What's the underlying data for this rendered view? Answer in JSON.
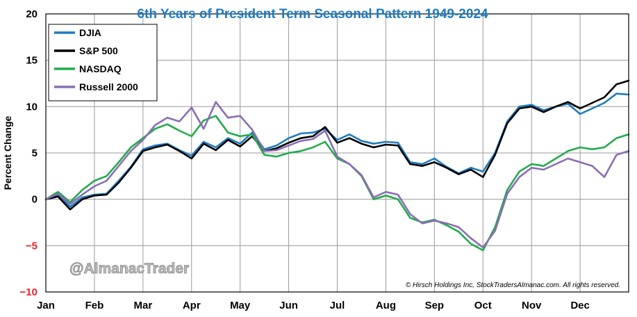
{
  "chart_data": {
    "type": "line",
    "title": "6th Years of President Term Seasonal Pattern 1949-2024",
    "xlabel": "",
    "ylabel": "Percent Change",
    "ylim": [
      -10,
      20
    ],
    "yticks": [
      -10,
      -5,
      0,
      5,
      10,
      15,
      20
    ],
    "categories": [
      "Jan",
      "Feb",
      "Mar",
      "Apr",
      "May",
      "Jun",
      "Jul",
      "Aug",
      "Sep",
      "Oct",
      "Nov",
      "Dec"
    ],
    "x": [
      0,
      0.25,
      0.5,
      0.75,
      1,
      1.25,
      1.5,
      1.75,
      2,
      2.25,
      2.5,
      2.75,
      3,
      3.25,
      3.5,
      3.75,
      4,
      4.25,
      4.5,
      4.75,
      5,
      5.25,
      5.5,
      5.75,
      6,
      6.25,
      6.5,
      6.75,
      7,
      7.25,
      7.5,
      7.75,
      8,
      8.25,
      8.5,
      8.75,
      9,
      9.25,
      9.5,
      9.75,
      10,
      10.25,
      10.5,
      10.75,
      11,
      11.25,
      11.5,
      11.75,
      12
    ],
    "grid": true,
    "legend_position": "top-left",
    "series": [
      {
        "name": "DJIA",
        "color": "#1e7bbf",
        "values": [
          0,
          0.5,
          -0.8,
          0.2,
          0.5,
          0.6,
          2.0,
          3.5,
          5.4,
          5.8,
          6.0,
          5.3,
          4.7,
          6.2,
          5.6,
          6.6,
          6.0,
          7.2,
          5.4,
          5.8,
          6.6,
          7.1,
          7.2,
          7.6,
          6.4,
          7.0,
          6.3,
          6.0,
          6.2,
          6.1,
          4.0,
          3.8,
          4.4,
          3.5,
          2.8,
          3.4,
          3.0,
          5.0,
          8.4,
          10.0,
          10.2,
          9.6,
          10.0,
          10.3,
          9.2,
          9.8,
          10.4,
          11.4,
          11.3
        ]
      },
      {
        "name": "S&P 500",
        "color": "#000000",
        "values": [
          0,
          0.3,
          -1.1,
          0.0,
          0.4,
          0.5,
          1.8,
          3.4,
          5.2,
          5.6,
          5.9,
          5.2,
          4.4,
          6.0,
          5.3,
          6.4,
          5.7,
          6.8,
          5.2,
          5.5,
          6.1,
          6.6,
          6.8,
          7.8,
          6.1,
          6.6,
          6.0,
          5.6,
          5.9,
          5.8,
          3.8,
          3.6,
          4.0,
          3.4,
          2.7,
          3.2,
          2.4,
          4.8,
          8.2,
          9.8,
          10.0,
          9.4,
          10.0,
          10.5,
          9.8,
          10.4,
          11.0,
          12.4,
          12.8
        ]
      },
      {
        "name": "NASDAQ",
        "color": "#22aa4c",
        "values": [
          0,
          0.8,
          -0.3,
          1.0,
          2.0,
          2.5,
          4.0,
          5.6,
          6.6,
          7.6,
          8.1,
          7.4,
          6.8,
          8.5,
          9.0,
          7.2,
          6.8,
          7.0,
          4.8,
          4.6,
          5.0,
          5.2,
          5.6,
          6.2,
          4.4,
          3.8,
          2.5,
          0.0,
          0.4,
          0.0,
          -2.0,
          -2.5,
          -2.2,
          -2.8,
          -3.5,
          -4.8,
          -5.5,
          -3.0,
          1.0,
          3.0,
          3.8,
          3.6,
          4.4,
          5.2,
          5.6,
          5.4,
          5.6,
          6.6,
          7.0
        ]
      },
      {
        "name": "Russell 2000",
        "color": "#8a6db4",
        "values": [
          0,
          0.6,
          -0.5,
          0.5,
          1.4,
          2.0,
          3.6,
          5.2,
          6.4,
          8.0,
          8.8,
          8.4,
          9.9,
          7.6,
          10.5,
          8.8,
          9.0,
          7.5,
          5.2,
          5.3,
          5.8,
          6.3,
          6.5,
          7.4,
          4.6,
          3.8,
          2.6,
          0.2,
          0.8,
          0.5,
          -1.6,
          -2.6,
          -2.3,
          -2.6,
          -3.0,
          -4.2,
          -5.2,
          -3.4,
          0.6,
          2.4,
          3.4,
          3.2,
          3.8,
          4.4,
          4.0,
          3.6,
          2.4,
          4.8,
          5.2
        ]
      }
    ]
  },
  "watermark": "@AlmanacTrader",
  "copyright": "© Hirsch Holdings Inc, StockTradersAlmanac.com. All rights reserved.",
  "colors": {
    "title": "#1e7bbf",
    "negative_tick": "#e8202a",
    "grid": "#9a9a9a",
    "frame": "#000000"
  }
}
